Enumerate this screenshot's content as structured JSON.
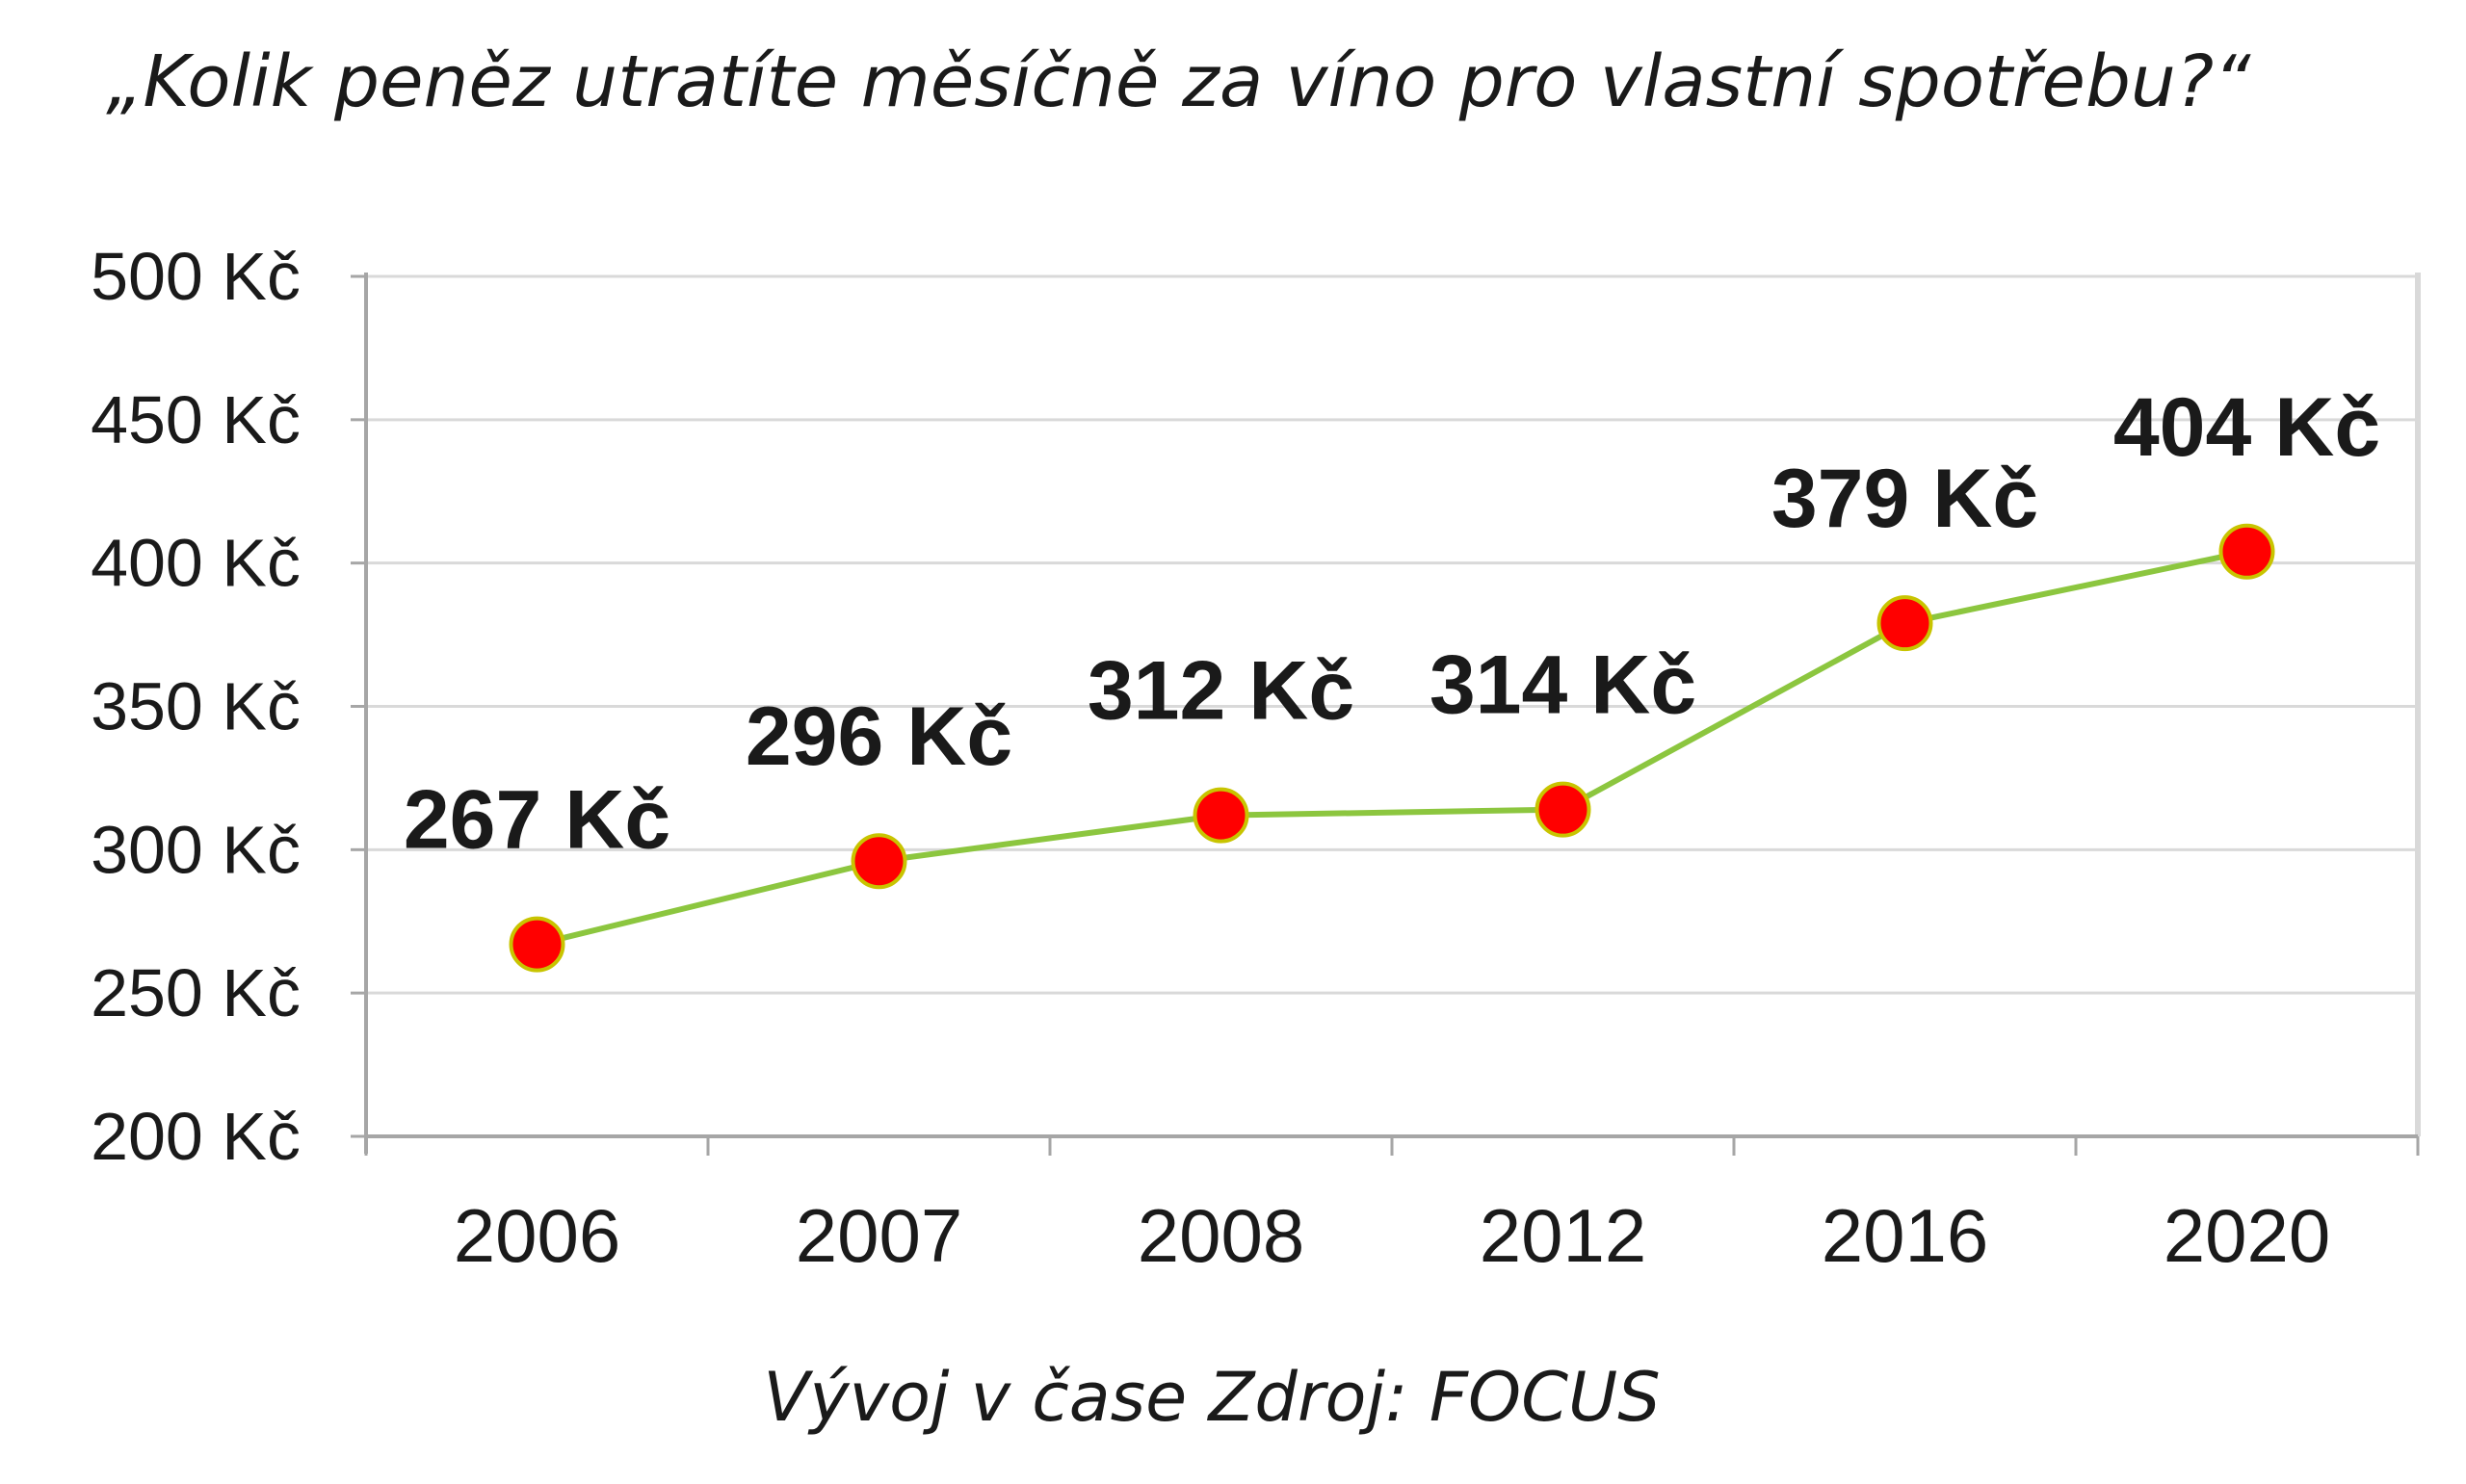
{
  "chart_data": {
    "type": "line",
    "title": "„Kolik peněz utratíte měsíčně za víno pro vlastní spotřebu?“",
    "caption": "Vývoj v čase Zdroj: FOCUS",
    "categories": [
      "2006",
      "2007",
      "2008",
      "2012",
      "2016",
      "2020"
    ],
    "values": [
      267,
      296,
      312,
      314,
      379,
      404
    ],
    "data_labels": [
      "267 Kč",
      "296 Kč",
      "312 Kč",
      "314 Kč",
      "379 Kč",
      "404 Kč"
    ],
    "y_ticks": [
      {
        "value": 200,
        "label": "200 Kč"
      },
      {
        "value": 250,
        "label": "250 Kč"
      },
      {
        "value": 300,
        "label": "300 Kč"
      },
      {
        "value": 350,
        "label": "350 Kč"
      },
      {
        "value": 400,
        "label": "400 Kč"
      },
      {
        "value": 450,
        "label": "450 Kč"
      },
      {
        "value": 500,
        "label": "500 Kč"
      }
    ],
    "ylim": [
      200,
      500
    ],
    "xlabel": "",
    "ylabel": "",
    "grid": true,
    "legend": "none",
    "colors": {
      "line": "#8cc63f",
      "marker_fill": "#ff0000",
      "marker_stroke": "#c8c400",
      "grid": "#d9d9d9",
      "axis": "#a6a6a6",
      "text": "#1a1a1a"
    }
  }
}
